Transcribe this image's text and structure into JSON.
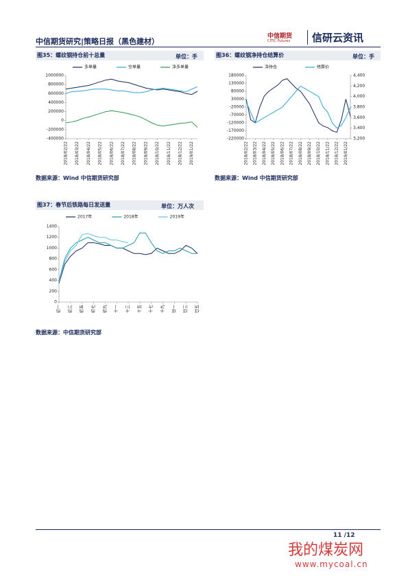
{
  "header": {
    "title": "中信期货研究|策略日报（黑色建材）",
    "logo_cn": "中信期货",
    "logo_en": "CITIC Futures",
    "brand": "信研云资讯"
  },
  "figures": [
    {
      "title": "图35：螺纹钢持仓前十总量",
      "unit": "单位：手",
      "source": "数据来源：Wind  中信期货研究部"
    },
    {
      "title": "图36：螺纹钢净持仓结算价",
      "unit": "单位：手",
      "source": "数据来源：Wind  中信期货研究部"
    },
    {
      "title": "图37：春节后铁路每日发送量",
      "unit": "单位：万人次",
      "source": "数据来源：中信期货研究部"
    }
  ],
  "footer": {
    "page": "11 /12"
  },
  "watermark": {
    "name": "我的煤炭网",
    "url": "www.mycoal.cn"
  },
  "chart_data": [
    {
      "type": "line",
      "categories": [
        "2018/02/22",
        null,
        "2018/03/22",
        null,
        "2018/04/22",
        null,
        "2018/05/22",
        null,
        "2018/06/22",
        null,
        "2018/07/22",
        null,
        "2018/08/22",
        null,
        "2018/09/22",
        null,
        "2018/10/22",
        null,
        "2018/11/22",
        null,
        "2018/12/22",
        null,
        "2019/01/22",
        null
      ],
      "series": [
        {
          "name": "多单量",
          "color": "#1a2a5a",
          "values": [
            700000,
            720000,
            740000,
            760000,
            780000,
            820000,
            860000,
            900000,
            920000,
            880000,
            860000,
            840000,
            800000,
            760000,
            720000,
            700000,
            680000,
            700000,
            680000,
            660000,
            640000,
            600000,
            580000,
            650000
          ]
        },
        {
          "name": "空单量",
          "color": "#2aa6d6",
          "values": [
            600000,
            640000,
            650000,
            660000,
            680000,
            700000,
            700000,
            700000,
            680000,
            660000,
            660000,
            640000,
            620000,
            620000,
            640000,
            680000,
            700000,
            720000,
            700000,
            680000,
            660000,
            640000,
            700000,
            750000
          ]
        },
        {
          "name": "净多单量",
          "color": "#2a9a4a",
          "values": [
            -50000,
            -30000,
            0,
            50000,
            80000,
            120000,
            160000,
            200000,
            220000,
            200000,
            180000,
            150000,
            120000,
            80000,
            20000,
            -50000,
            -100000,
            -120000,
            -100000,
            -80000,
            -60000,
            -50000,
            -30000,
            -150000
          ]
        }
      ],
      "ylim": [
        -400000,
        1000000
      ],
      "yticks": [
        -400000,
        -200000,
        0,
        200000,
        400000,
        600000,
        800000,
        1000000
      ]
    },
    {
      "type": "line",
      "categories": [
        "2018/02/22",
        null,
        "2018/03/22",
        null,
        "2018/04/22",
        null,
        "2018/05/22",
        null,
        "2018/06/22",
        null,
        "2018/07/22",
        null,
        "2018/08/22",
        null,
        "2018/09/22",
        null,
        "2018/10/22",
        null,
        "2018/11/22",
        null,
        "2018/12/22",
        null,
        "2019/01/22",
        null
      ],
      "series": [
        {
          "name": "净持仓",
          "color": "#1a2a5a",
          "values": [
            30000,
            -100000,
            -120000,
            -20000,
            50000,
            80000,
            100000,
            120000,
            150000,
            160000,
            130000,
            100000,
            80000,
            40000,
            0,
            -60000,
            -120000,
            -140000,
            -150000,
            -170000,
            -180000,
            -100000,
            30000,
            -80000
          ]
        },
        {
          "name": "结算价",
          "color": "#2aa6d6",
          "axis": "y2",
          "values": [
            3900,
            3700,
            3500,
            3550,
            3600,
            3650,
            3700,
            3750,
            3800,
            3900,
            4000,
            4100,
            4200,
            4150,
            4100,
            4050,
            4000,
            3800,
            3700,
            3500,
            3400,
            3450,
            3600,
            3800
          ]
        }
      ],
      "ylim": [
        -220000,
        180000
      ],
      "yticks": [
        -220000,
        -170000,
        -120000,
        -70000,
        -20000,
        30000,
        80000,
        130000,
        180000
      ],
      "y2lim": [
        3200,
        4400
      ],
      "y2ticks": [
        {
          "value": 3200,
          "label": "3,200"
        },
        {
          "value": 3400,
          "label": "3,400"
        },
        {
          "value": 3600,
          "label": "3,600"
        },
        {
          "value": 3800,
          "label": "3,800"
        },
        {
          "value": 4000,
          "label": "4,000"
        },
        {
          "value": 4200,
          "label": "4,200"
        },
        {
          "value": 4400,
          "label": "4,400"
        }
      ]
    },
    {
      "type": "line",
      "categories": [
        "初一",
        null,
        "初三",
        null,
        "初五",
        null,
        "初七",
        null,
        "初九",
        null,
        "十一",
        null,
        "十三",
        null,
        "十五",
        null,
        "十七",
        null,
        "十九",
        null,
        "廿一",
        null,
        "廿三",
        null,
        "廿五"
      ],
      "series": [
        {
          "name": "2017年",
          "color": "#1a2a5a",
          "values": [
            350,
            700,
            850,
            950,
            1000,
            1100,
            1100,
            1080,
            1050,
            1050,
            1000,
            1000,
            950,
            900,
            900,
            880,
            900,
            1000,
            950,
            900,
            900,
            950,
            1050,
            1000,
            900
          ]
        },
        {
          "name": "2018年",
          "color": "#1f9aa8",
          "values": [
            400,
            800,
            1000,
            1100,
            1150,
            1200,
            1150,
            1100,
            1100,
            1050,
            1000,
            1000,
            1050,
            1100,
            1280,
            1280,
            1100,
            950,
            900,
            950,
            950,
            1000,
            950,
            900,
            900
          ]
        },
        {
          "name": "2019年",
          "color": "#5bc0e8",
          "values": [
            380,
            750,
            950,
            1050,
            1250,
            1270,
            1230,
            1200,
            1200,
            1150,
            1150,
            1120,
            1100,
            null,
            null,
            null,
            null,
            null,
            null,
            null,
            null,
            null,
            null,
            null,
            null
          ]
        }
      ],
      "ylim": [
        0,
        1400
      ],
      "yticks": [
        0,
        200,
        400,
        600,
        800,
        1000,
        1200,
        1400
      ]
    }
  ]
}
